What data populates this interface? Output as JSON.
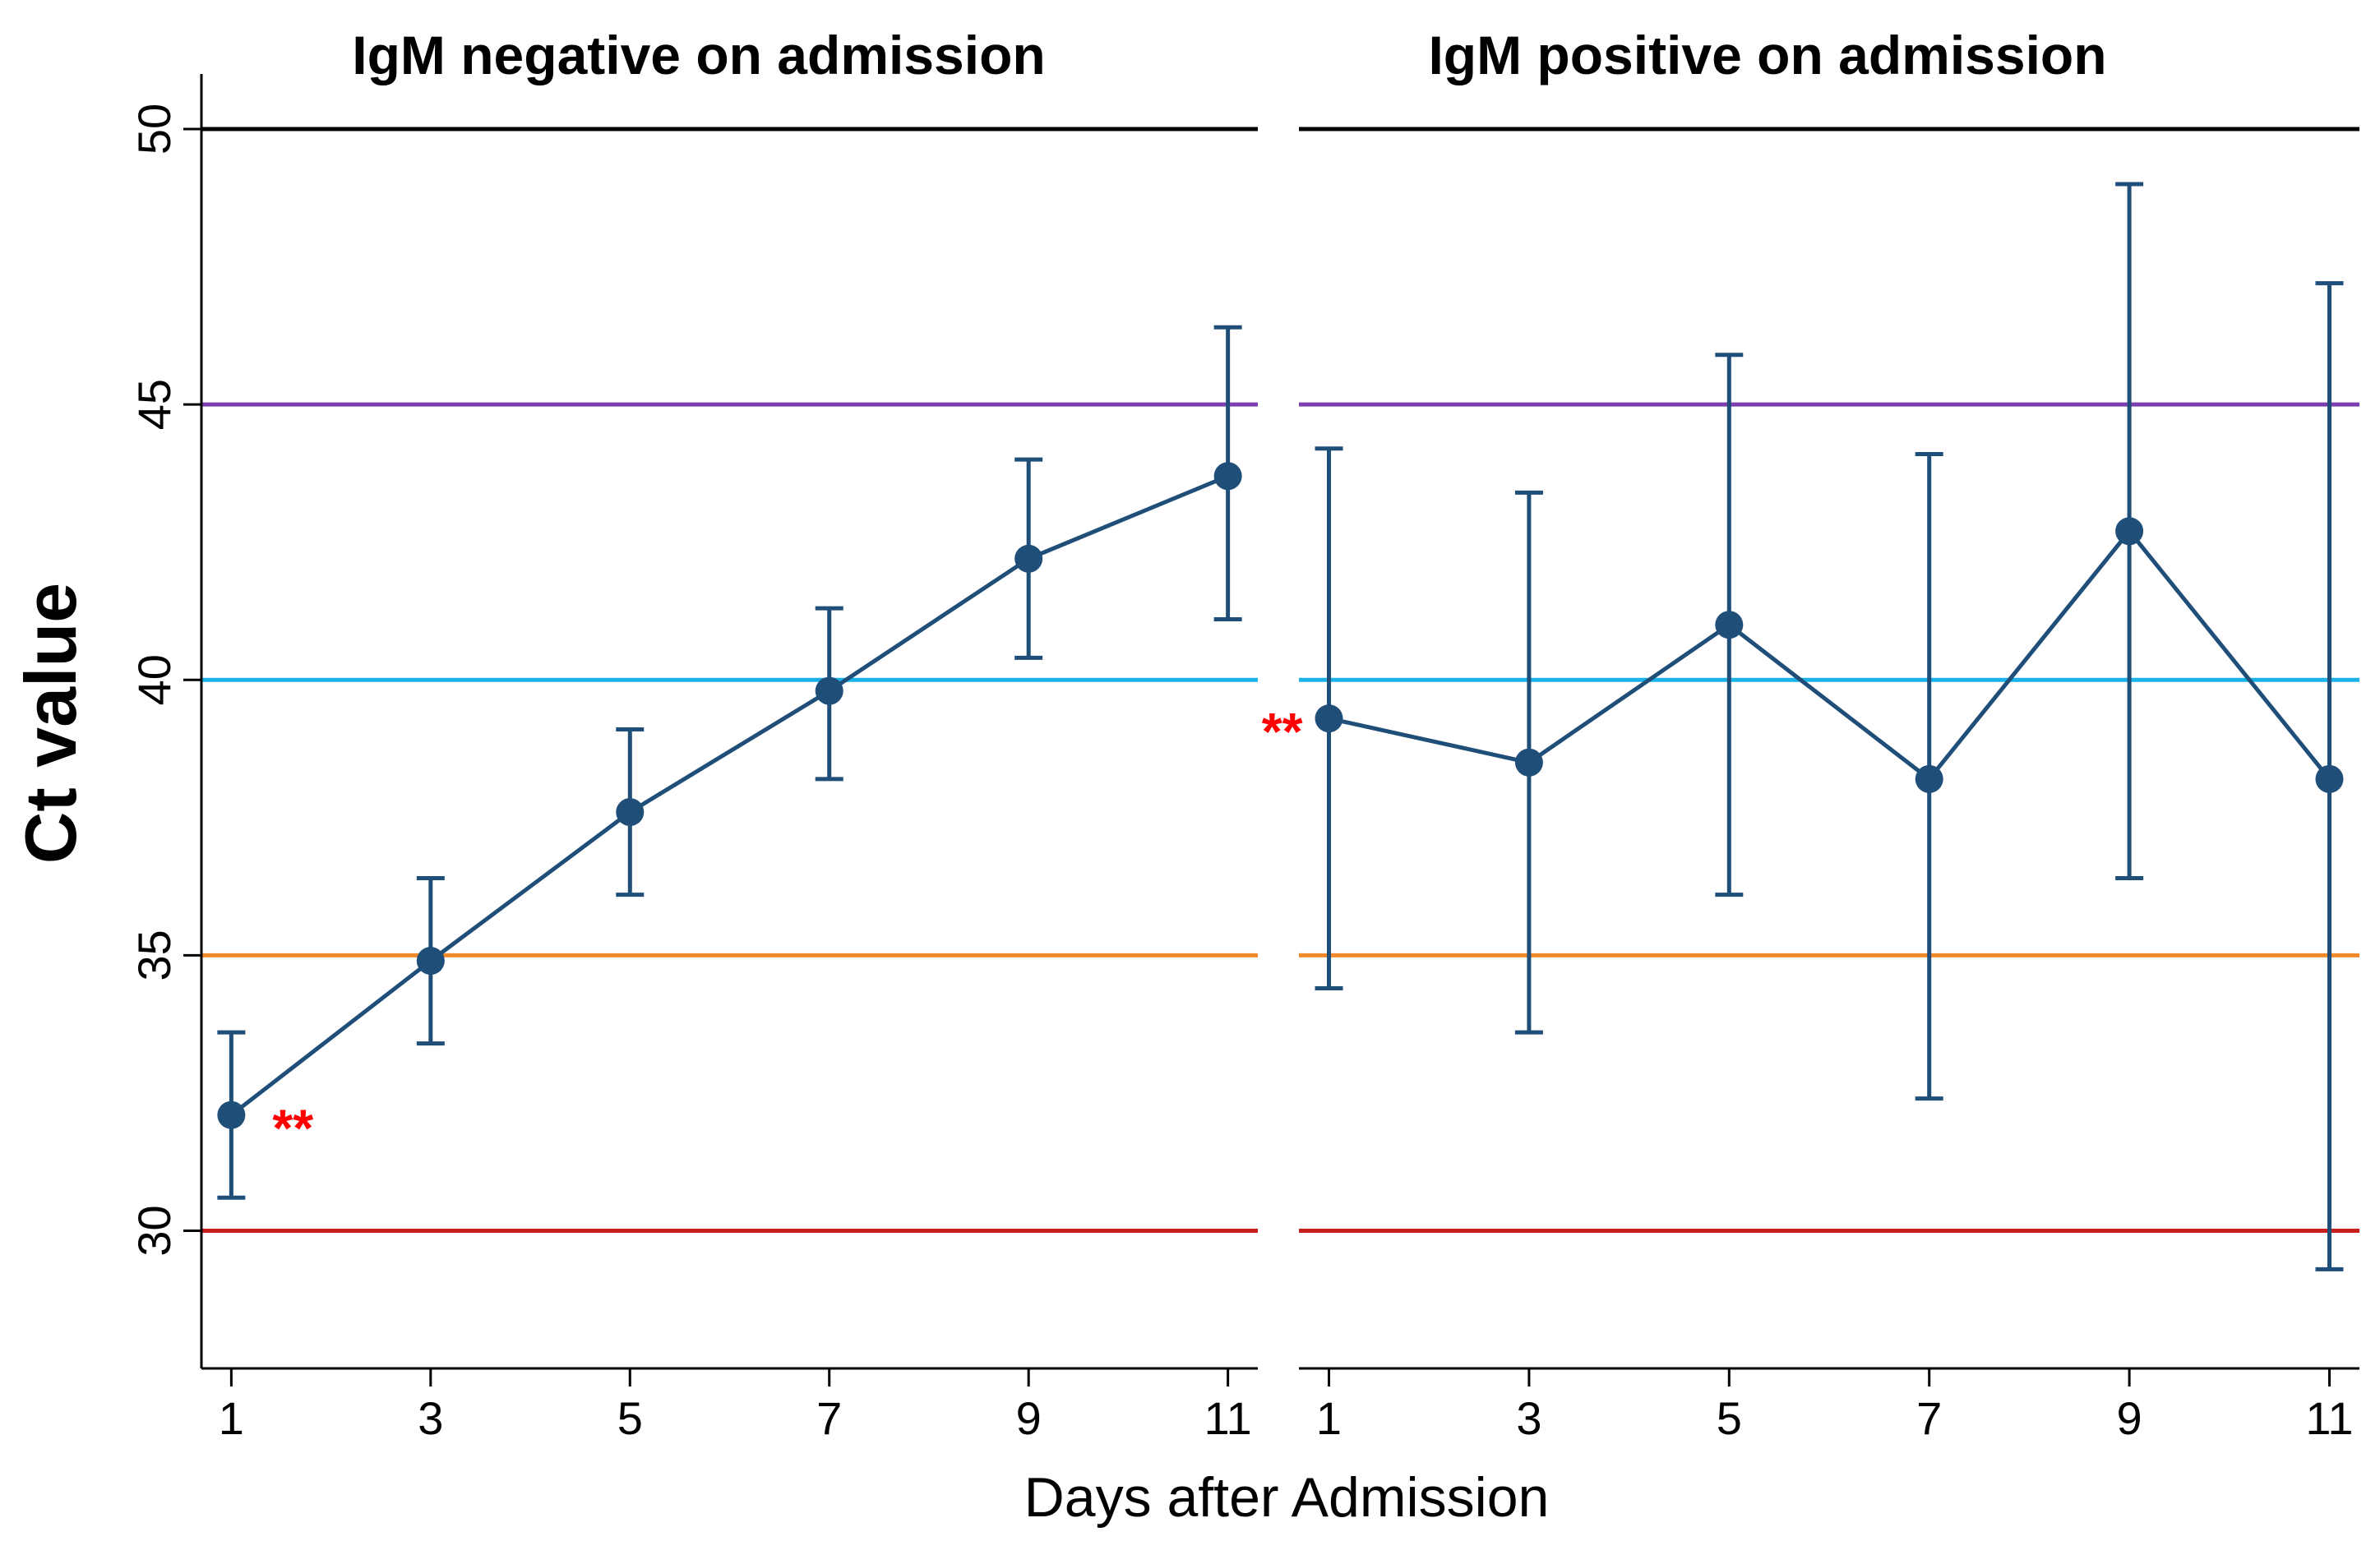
{
  "chart_data": {
    "type": "line",
    "ylabel": "Ct value",
    "xlabel": "Days after Admission",
    "ylim": [
      27.5,
      51
    ],
    "yticks": [
      30,
      35,
      40,
      45,
      50
    ],
    "xticks": [
      1,
      3,
      5,
      7,
      9,
      11
    ],
    "xlim": [
      0.7,
      11.3
    ],
    "reference_lines": [
      {
        "y": 50,
        "color": "#000000"
      },
      {
        "y": 45,
        "color": "#7b3fb0"
      },
      {
        "y": 40,
        "color": "#1ab2e8"
      },
      {
        "y": 35,
        "color": "#f28a2c"
      },
      {
        "y": 30,
        "color": "#c81e1e"
      }
    ],
    "panels": [
      {
        "title": "IgM negative on admission",
        "series_color": "#1f4e79",
        "x": [
          1,
          3,
          5,
          7,
          9,
          11
        ],
        "values": [
          32.1,
          34.9,
          37.6,
          39.8,
          42.2,
          43.7
        ],
        "lower": [
          30.6,
          33.4,
          36.1,
          38.2,
          40.4,
          41.1
        ],
        "upper": [
          33.6,
          36.4,
          39.1,
          41.3,
          44.0,
          46.4
        ],
        "annotation": {
          "text": "**",
          "x": 1,
          "y": 32.1,
          "placement": "right"
        }
      },
      {
        "title": "IgM positive on admission",
        "series_color": "#1f4e79",
        "x": [
          1,
          3,
          5,
          7,
          9,
          11
        ],
        "values": [
          39.3,
          38.5,
          41.0,
          38.2,
          42.7,
          38.2
        ],
        "lower": [
          34.4,
          33.6,
          36.1,
          32.4,
          36.4,
          29.3
        ],
        "upper": [
          44.2,
          43.4,
          45.9,
          44.1,
          49.0,
          47.2
        ],
        "annotation": {
          "text": "**",
          "x": 1,
          "y": 39.3,
          "placement": "left"
        }
      }
    ]
  }
}
